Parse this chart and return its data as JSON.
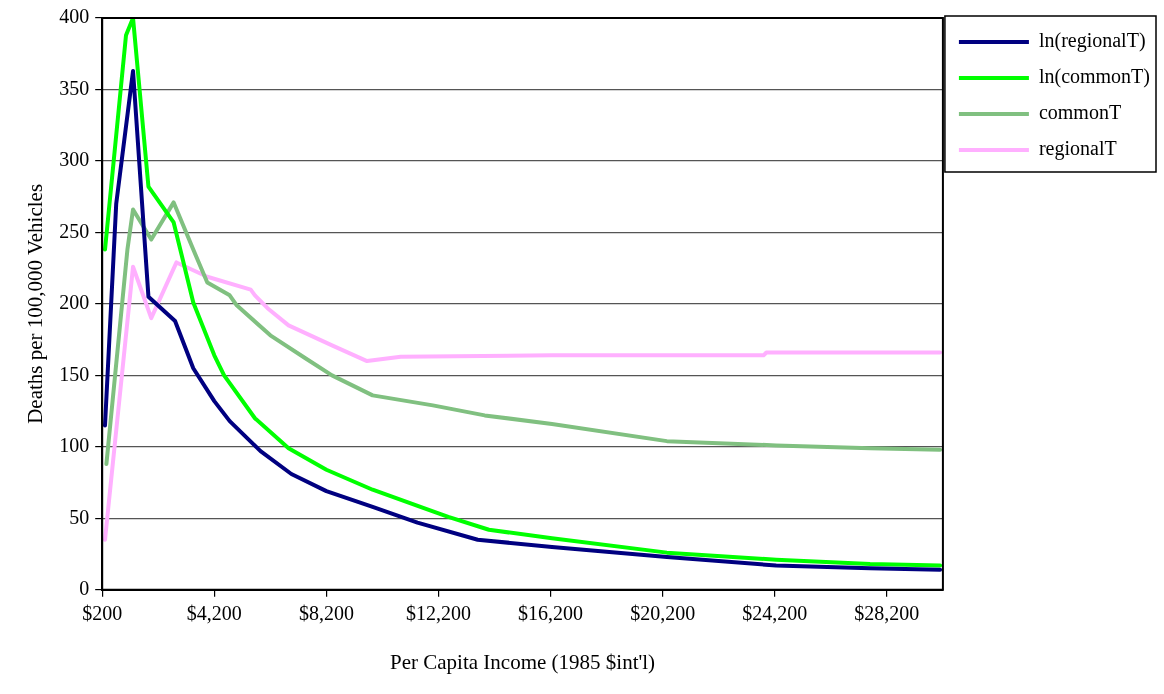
{
  "chart_data": {
    "type": "line",
    "xlabel": "Per Capita Income (1985 $int'l)",
    "ylabel": "Deaths per 100,000 Vehicles",
    "xlim": [
      200,
      30200
    ],
    "xticks": [
      {
        "value": 200,
        "label": "$200"
      },
      {
        "value": 4200,
        "label": "$4,200"
      },
      {
        "value": 8200,
        "label": "$8,200"
      },
      {
        "value": 12200,
        "label": "$12,200"
      },
      {
        "value": 16200,
        "label": "$16,200"
      },
      {
        "value": 20200,
        "label": "$20,200"
      },
      {
        "value": 24200,
        "label": "$24,200"
      },
      {
        "value": 28200,
        "label": "$28,200"
      }
    ],
    "ylim": [
      0,
      400
    ],
    "yticks": [
      0,
      50,
      100,
      150,
      200,
      250,
      300,
      350,
      400
    ],
    "grid": "y",
    "legend": "top right",
    "marker": "none",
    "line_style": "solid",
    "series": [
      {
        "name": "ln(regionalT)",
        "color": "#000080",
        "x": [
          300,
          700,
          1300,
          1850,
          2800,
          3450,
          4200,
          4750,
          5850,
          6950,
          8200,
          9850,
          11450,
          13600,
          16250,
          20350,
          24250,
          27600,
          30100
        ],
        "values": [
          115,
          270,
          363,
          205,
          188,
          155,
          132,
          118,
          97,
          81,
          69,
          58,
          47,
          35,
          30,
          23,
          17,
          15,
          14
        ]
      },
      {
        "name": "ln(commonT)",
        "color": "#00ff00",
        "x": [
          300,
          1050,
          1300,
          1850,
          2750,
          3450,
          4200,
          4550,
          5650,
          6850,
          8200,
          9850,
          12550,
          14000,
          16250,
          20350,
          24250,
          27600,
          30100
        ],
        "values": [
          238,
          388,
          400,
          282,
          257,
          201,
          164,
          150,
          120,
          99,
          84,
          70,
          51,
          42,
          36,
          26,
          21,
          18,
          17
        ]
      },
      {
        "name": "commonT",
        "color": "#80c080",
        "x": [
          350,
          1100,
          1300,
          1950,
          2750,
          3450,
          3950,
          4750,
          5000,
          6200,
          7450,
          8400,
          9850,
          12000,
          13850,
          16250,
          20350,
          24250,
          27600,
          30100
        ],
        "values": [
          88,
          238,
          266,
          245,
          271,
          238,
          215,
          206,
          199,
          178,
          162,
          150,
          136,
          129,
          122,
          116,
          104,
          101,
          99,
          98
        ]
      },
      {
        "name": "regionalT",
        "color": "#ffb0ff",
        "x": [
          300,
          1300,
          1950,
          2850,
          3950,
          5500,
          5650,
          6100,
          6850,
          8400,
          9650,
          10850,
          16250,
          23800,
          23900,
          30100
        ],
        "values": [
          35,
          226,
          190,
          229,
          219,
          210,
          206,
          197,
          185,
          171,
          160,
          163,
          164,
          164,
          166,
          166
        ]
      }
    ]
  }
}
